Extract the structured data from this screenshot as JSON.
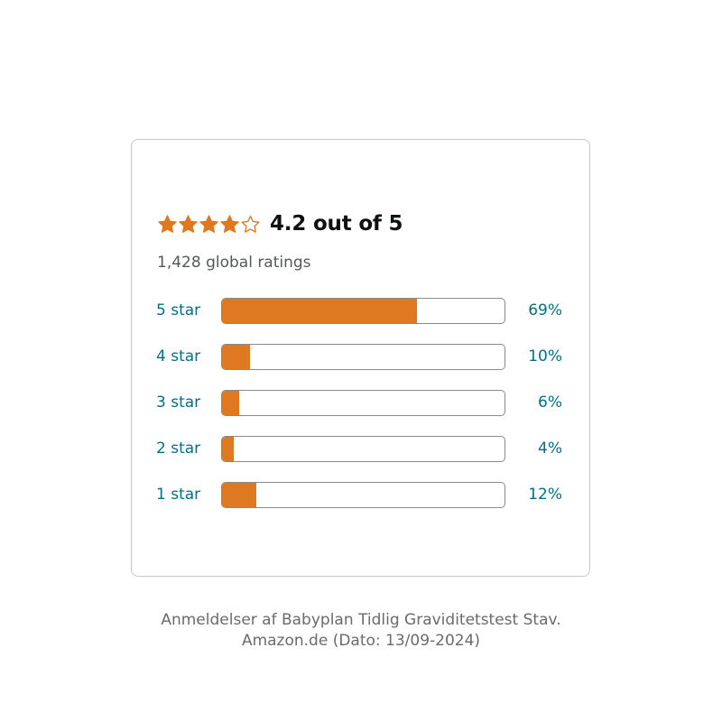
{
  "rating": {
    "stars_value": 4.2,
    "stars_max": 5,
    "text": "4.2 out of 5",
    "global_ratings": "1,428 global ratings"
  },
  "histogram": [
    {
      "label": "5 star",
      "percent_text": "69%",
      "percent": 69
    },
    {
      "label": "4 star",
      "percent_text": "10%",
      "percent": 10
    },
    {
      "label": "3 star",
      "percent_text": "6%",
      "percent": 6
    },
    {
      "label": "2 star",
      "percent_text": "4%",
      "percent": 4
    },
    {
      "label": "1 star",
      "percent_text": "12%",
      "percent": 12
    }
  ],
  "caption": {
    "line1": "Anmeldelser af Babyplan Tidlig Graviditetstest Stav.",
    "line2": "Amazon.de (Dato: 13/09-2024)"
  },
  "colors": {
    "star": "#de7921",
    "bar_fill": "#de7921",
    "link": "#007185"
  },
  "icons": [
    "star-filled-icon",
    "star-partial-icon",
    "star-empty-icon"
  ]
}
